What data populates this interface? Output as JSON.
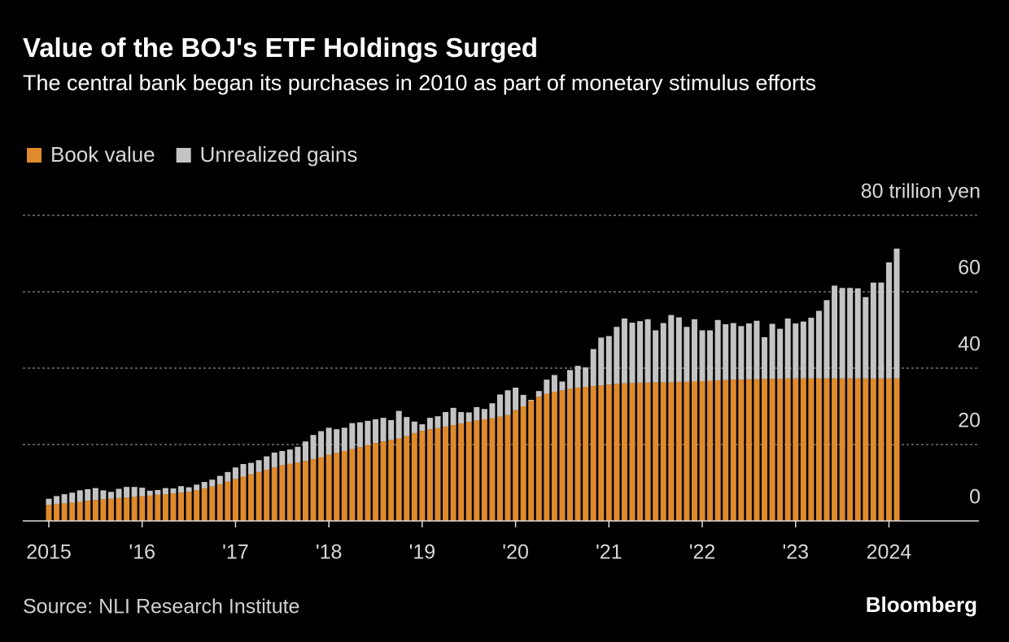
{
  "chart_data": {
    "type": "bar",
    "stacked": true,
    "title": "Value of the BOJ's ETF Holdings Surged",
    "subtitle": "The central bank began its purchases in 2010 as part of monetary stimulus efforts",
    "source": "Source: NLI Research Institute",
    "brand": "Bloomberg",
    "legend": "top-left",
    "grid": true,
    "ylim": [
      0,
      80
    ],
    "yticks": [
      0,
      20,
      40,
      60,
      {
        "value": 80,
        "label": "80 trillion yen"
      }
    ],
    "categories": [
      "2015",
      null,
      null,
      null,
      null,
      null,
      null,
      null,
      null,
      null,
      null,
      null,
      "'16",
      null,
      null,
      null,
      null,
      null,
      null,
      null,
      null,
      null,
      null,
      null,
      "'17",
      null,
      null,
      null,
      null,
      null,
      null,
      null,
      null,
      null,
      null,
      null,
      "'18",
      null,
      null,
      null,
      null,
      null,
      null,
      null,
      null,
      null,
      null,
      null,
      "'19",
      null,
      null,
      null,
      null,
      null,
      null,
      null,
      null,
      null,
      null,
      null,
      "'20",
      null,
      null,
      null,
      null,
      null,
      null,
      null,
      null,
      null,
      null,
      null,
      "'21",
      null,
      null,
      null,
      null,
      null,
      null,
      null,
      null,
      null,
      null,
      null,
      "'22",
      null,
      null,
      null,
      null,
      null,
      null,
      null,
      null,
      null,
      null,
      null,
      "'23",
      null,
      null,
      null,
      null,
      null,
      null,
      null,
      null,
      null,
      null,
      null,
      "2024",
      null
    ],
    "series": [
      {
        "name": "Book value",
        "color": "#df8a2c",
        "values": [
          4.2,
          4.4,
          4.6,
          4.8,
          5.0,
          5.3,
          5.5,
          5.7,
          5.8,
          6.0,
          6.1,
          6.3,
          6.5,
          6.7,
          6.9,
          7.0,
          7.2,
          7.4,
          7.6,
          8.0,
          8.5,
          9.0,
          9.6,
          10.3,
          11.0,
          11.6,
          12.2,
          12.8,
          13.4,
          14.0,
          14.6,
          15.0,
          15.3,
          15.7,
          16.2,
          16.7,
          17.3,
          17.8,
          18.3,
          18.8,
          19.3,
          19.9,
          20.4,
          20.8,
          21.2,
          21.6,
          22.2,
          23.0,
          23.6,
          24.0,
          24.3,
          24.7,
          25.1,
          25.5,
          25.9,
          26.3,
          26.6,
          26.9,
          27.3,
          27.7,
          29.0,
          30.0,
          31.5,
          32.5,
          33.3,
          33.8,
          34.2,
          34.6,
          34.9,
          35.1,
          35.3,
          35.5,
          35.7,
          35.9,
          36.0,
          36.1,
          36.2,
          36.2,
          36.3,
          36.3,
          36.3,
          36.4,
          36.4,
          36.5,
          36.6,
          36.7,
          36.8,
          36.9,
          37.0,
          37.0,
          37.1,
          37.1,
          37.2,
          37.2,
          37.2,
          37.3,
          37.3,
          37.3,
          37.3,
          37.3,
          37.3,
          37.3,
          37.3,
          37.3,
          37.3,
          37.3,
          37.3,
          37.3,
          37.3,
          37.3
        ]
      },
      {
        "name": "Unrealized gains",
        "color": "#c4c4c4",
        "values": [
          1.6,
          2.1,
          2.4,
          2.6,
          3.0,
          3.0,
          3.1,
          2.3,
          1.8,
          2.4,
          2.8,
          2.6,
          2.2,
          1.2,
          1.2,
          1.6,
          1.3,
          1.7,
          1.2,
          1.5,
          1.7,
          1.8,
          2.2,
          2.5,
          3.0,
          3.3,
          3.0,
          3.1,
          3.5,
          3.9,
          3.7,
          3.7,
          4.1,
          5.1,
          6.3,
          6.8,
          7.1,
          6.2,
          6.1,
          6.8,
          6.5,
          6.3,
          6.2,
          6.2,
          5.2,
          7.2,
          5.0,
          3.0,
          1.7,
          3.0,
          3.1,
          3.8,
          4.5,
          3.0,
          2.5,
          3.5,
          2.7,
          3.9,
          5.8,
          6.5,
          5.9,
          3.0,
          0.2,
          1.5,
          3.7,
          4.4,
          2.3,
          4.9,
          5.7,
          5.1,
          9.7,
          12.5,
          12.7,
          14.9,
          17.0,
          15.8,
          16.1,
          16.6,
          13.6,
          15.5,
          17.6,
          16.9,
          14.4,
          16.3,
          13.3,
          13.2,
          15.8,
          14.6,
          14.8,
          14.0,
          14.6,
          15.3,
          10.9,
          14.4,
          13.1,
          15.7,
          14.4,
          14.9,
          15.9,
          17.7,
          20.5,
          24.3,
          23.7,
          23.7,
          23.6,
          21.3,
          25.1,
          25.1,
          30.4,
          34.0
        ]
      }
    ]
  }
}
